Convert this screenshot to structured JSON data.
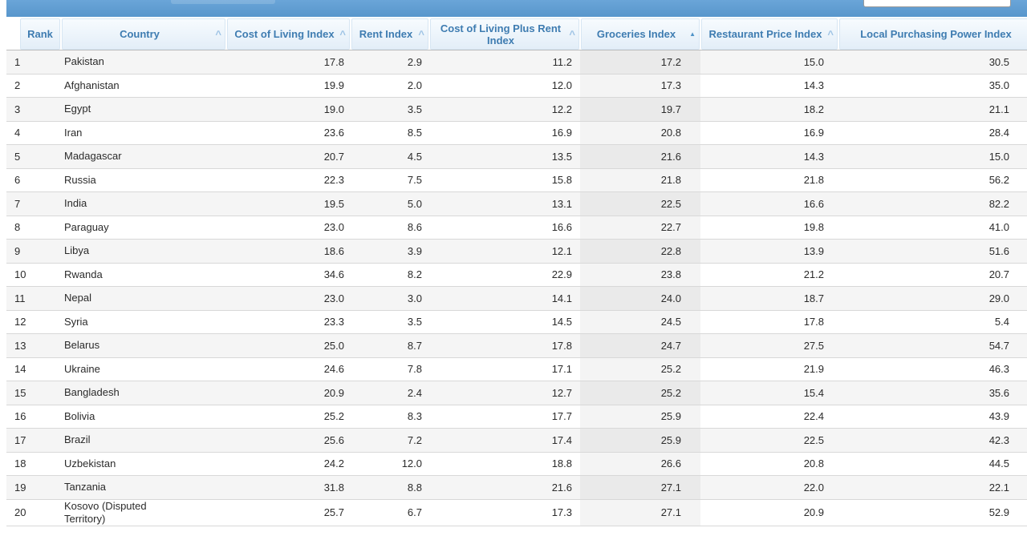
{
  "topbar": {
    "search_value": "",
    "search_placeholder": ""
  },
  "icons": {
    "sort_unsorted": "^",
    "sort_asc": "▲"
  },
  "colors": {
    "topbar_blue": "#5f9ccf",
    "header_text_blue": "#3e7cb1",
    "sorted_caret_blue": "#4e93c8",
    "unsorted_caret_blue": "#9dc3e4",
    "zebra_gray": "#f5f5f5",
    "sorted_column_tint": "#ececec"
  },
  "table": {
    "columns": [
      {
        "label": "Rank",
        "sortable": false,
        "sort": "none"
      },
      {
        "label": "Country",
        "sortable": true,
        "sort": "none"
      },
      {
        "label": "Cost of Living Index",
        "sortable": true,
        "sort": "none"
      },
      {
        "label": "Rent Index",
        "sortable": true,
        "sort": "none"
      },
      {
        "label": "Cost of Living Plus Rent Index",
        "sortable": true,
        "sort": "none"
      },
      {
        "label": "Groceries Index",
        "sortable": true,
        "sort": "asc"
      },
      {
        "label": "Restaurant Price Index",
        "sortable": true,
        "sort": "none"
      },
      {
        "label": "Local Purchasing Power Index",
        "sortable": true,
        "sort": "none"
      }
    ],
    "rows": [
      [
        "1",
        "Pakistan",
        "17.8",
        "2.9",
        "11.2",
        "17.2",
        "15.0",
        "30.5"
      ],
      [
        "2",
        "Afghanistan",
        "19.9",
        "2.0",
        "12.0",
        "17.3",
        "14.3",
        "35.0"
      ],
      [
        "3",
        "Egypt",
        "19.0",
        "3.5",
        "12.2",
        "19.7",
        "18.2",
        "21.1"
      ],
      [
        "4",
        "Iran",
        "23.6",
        "8.5",
        "16.9",
        "20.8",
        "16.9",
        "28.4"
      ],
      [
        "5",
        "Madagascar",
        "20.7",
        "4.5",
        "13.5",
        "21.6",
        "14.3",
        "15.0"
      ],
      [
        "6",
        "Russia",
        "22.3",
        "7.5",
        "15.8",
        "21.8",
        "21.8",
        "56.2"
      ],
      [
        "7",
        "India",
        "19.5",
        "5.0",
        "13.1",
        "22.5",
        "16.6",
        "82.2"
      ],
      [
        "8",
        "Paraguay",
        "23.0",
        "8.6",
        "16.6",
        "22.7",
        "19.8",
        "41.0"
      ],
      [
        "9",
        "Libya",
        "18.6",
        "3.9",
        "12.1",
        "22.8",
        "13.9",
        "51.6"
      ],
      [
        "10",
        "Rwanda",
        "34.6",
        "8.2",
        "22.9",
        "23.8",
        "21.2",
        "20.7"
      ],
      [
        "11",
        "Nepal",
        "23.0",
        "3.0",
        "14.1",
        "24.0",
        "18.7",
        "29.0"
      ],
      [
        "12",
        "Syria",
        "23.3",
        "3.5",
        "14.5",
        "24.5",
        "17.8",
        "5.4"
      ],
      [
        "13",
        "Belarus",
        "25.0",
        "8.7",
        "17.8",
        "24.7",
        "27.5",
        "54.7"
      ],
      [
        "14",
        "Ukraine",
        "24.6",
        "7.8",
        "17.1",
        "25.2",
        "21.9",
        "46.3"
      ],
      [
        "15",
        "Bangladesh",
        "20.9",
        "2.4",
        "12.7",
        "25.2",
        "15.4",
        "35.6"
      ],
      [
        "16",
        "Bolivia",
        "25.2",
        "8.3",
        "17.7",
        "25.9",
        "22.4",
        "43.9"
      ],
      [
        "17",
        "Brazil",
        "25.6",
        "7.2",
        "17.4",
        "25.9",
        "22.5",
        "42.3"
      ],
      [
        "18",
        "Uzbekistan",
        "24.2",
        "12.0",
        "18.8",
        "26.6",
        "20.8",
        "44.5"
      ],
      [
        "19",
        "Tanzania",
        "31.8",
        "8.8",
        "21.6",
        "27.1",
        "22.0",
        "22.1"
      ],
      [
        "20",
        "Kosovo (Disputed Territory)",
        "25.7",
        "6.7",
        "17.3",
        "27.1",
        "20.9",
        "52.9"
      ]
    ]
  }
}
